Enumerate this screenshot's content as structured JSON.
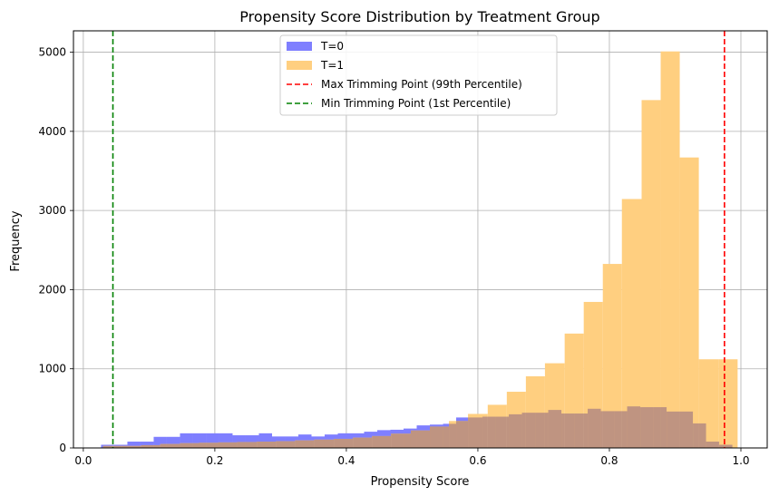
{
  "chart_data": {
    "type": "histogram",
    "title": "Propensity Score Distribution by Treatment Group",
    "xlabel": "Propensity Score",
    "ylabel": "Frequency",
    "xlim": [
      -0.015,
      1.04
    ],
    "ylim": [
      0,
      5270
    ],
    "xticks": [
      0.0,
      0.2,
      0.4,
      0.6,
      0.8,
      1.0
    ],
    "xtick_labels": [
      "0.0",
      "0.2",
      "0.4",
      "0.6",
      "0.8",
      "1.0"
    ],
    "yticks": [
      0,
      1000,
      2000,
      3000,
      4000,
      5000
    ],
    "ytick_labels": [
      "0",
      "1000",
      "2000",
      "3000",
      "4000",
      "5000"
    ],
    "grid": true,
    "legend_position": "top-center",
    "series": [
      {
        "name": "T=0",
        "color": "#7f7fff",
        "alpha": 1,
        "bins": [
          [
            0.027,
            0.047,
            40
          ],
          [
            0.047,
            0.067,
            40
          ],
          [
            0.067,
            0.087,
            80
          ],
          [
            0.087,
            0.107,
            80
          ],
          [
            0.107,
            0.127,
            140
          ],
          [
            0.127,
            0.147,
            140
          ],
          [
            0.147,
            0.167,
            185
          ],
          [
            0.167,
            0.187,
            185
          ],
          [
            0.187,
            0.207,
            185
          ],
          [
            0.207,
            0.227,
            185
          ],
          [
            0.227,
            0.247,
            160
          ],
          [
            0.247,
            0.267,
            160
          ],
          [
            0.267,
            0.287,
            185
          ],
          [
            0.287,
            0.307,
            145
          ],
          [
            0.307,
            0.327,
            145
          ],
          [
            0.327,
            0.347,
            170
          ],
          [
            0.347,
            0.367,
            145
          ],
          [
            0.367,
            0.387,
            170
          ],
          [
            0.387,
            0.407,
            185
          ],
          [
            0.407,
            0.427,
            185
          ],
          [
            0.427,
            0.447,
            205
          ],
          [
            0.447,
            0.467,
            225
          ],
          [
            0.467,
            0.487,
            230
          ],
          [
            0.487,
            0.507,
            245
          ],
          [
            0.507,
            0.527,
            285
          ],
          [
            0.527,
            0.547,
            295
          ],
          [
            0.547,
            0.567,
            305
          ],
          [
            0.567,
            0.587,
            385
          ],
          [
            0.587,
            0.607,
            385
          ],
          [
            0.607,
            0.627,
            395
          ],
          [
            0.627,
            0.647,
            395
          ],
          [
            0.647,
            0.667,
            425
          ],
          [
            0.667,
            0.687,
            445
          ],
          [
            0.687,
            0.707,
            445
          ],
          [
            0.707,
            0.727,
            480
          ],
          [
            0.727,
            0.747,
            435
          ],
          [
            0.747,
            0.767,
            435
          ],
          [
            0.767,
            0.787,
            495
          ],
          [
            0.787,
            0.807,
            465
          ],
          [
            0.807,
            0.827,
            465
          ],
          [
            0.827,
            0.847,
            525
          ],
          [
            0.847,
            0.867,
            515
          ],
          [
            0.867,
            0.887,
            515
          ],
          [
            0.887,
            0.907,
            460
          ],
          [
            0.907,
            0.927,
            460
          ],
          [
            0.927,
            0.947,
            310
          ],
          [
            0.947,
            0.967,
            80
          ],
          [
            0.967,
            0.987,
            40
          ]
        ]
      },
      {
        "name": "T=1",
        "color": "#ffcf80",
        "alpha": 1,
        "bins": [
          [
            0.03,
            0.059,
            25
          ],
          [
            0.059,
            0.088,
            25
          ],
          [
            0.088,
            0.117,
            35
          ],
          [
            0.117,
            0.147,
            50
          ],
          [
            0.147,
            0.176,
            60
          ],
          [
            0.176,
            0.205,
            65
          ],
          [
            0.205,
            0.234,
            70
          ],
          [
            0.234,
            0.264,
            75
          ],
          [
            0.264,
            0.293,
            80
          ],
          [
            0.293,
            0.322,
            85
          ],
          [
            0.322,
            0.351,
            95
          ],
          [
            0.351,
            0.381,
            105
          ],
          [
            0.381,
            0.41,
            115
          ],
          [
            0.41,
            0.439,
            130
          ],
          [
            0.439,
            0.468,
            150
          ],
          [
            0.468,
            0.498,
            180
          ],
          [
            0.498,
            0.527,
            220
          ],
          [
            0.527,
            0.556,
            270
          ],
          [
            0.556,
            0.585,
            340
          ],
          [
            0.585,
            0.615,
            430
          ],
          [
            0.615,
            0.644,
            545
          ],
          [
            0.644,
            0.673,
            710
          ],
          [
            0.673,
            0.702,
            905
          ],
          [
            0.702,
            0.732,
            1070
          ],
          [
            0.732,
            0.761,
            1445
          ],
          [
            0.761,
            0.79,
            1845
          ],
          [
            0.79,
            0.819,
            2325
          ],
          [
            0.819,
            0.849,
            3145
          ],
          [
            0.849,
            0.878,
            4395
          ],
          [
            0.878,
            0.907,
            5010
          ],
          [
            0.907,
            0.936,
            3670
          ],
          [
            0.936,
            0.966,
            1120
          ],
          [
            0.966,
            0.995,
            1120
          ]
        ]
      }
    ],
    "reference_lines": [
      {
        "name": "Max Trimming Point (99th Percentile)",
        "x": 0.975,
        "color": "#ff0000",
        "style": "dashed"
      },
      {
        "name": "Min Trimming Point (1st Percentile)",
        "x": 0.045,
        "color": "#008000",
        "style": "dashed"
      }
    ],
    "overlap_color": "#bf9481"
  }
}
